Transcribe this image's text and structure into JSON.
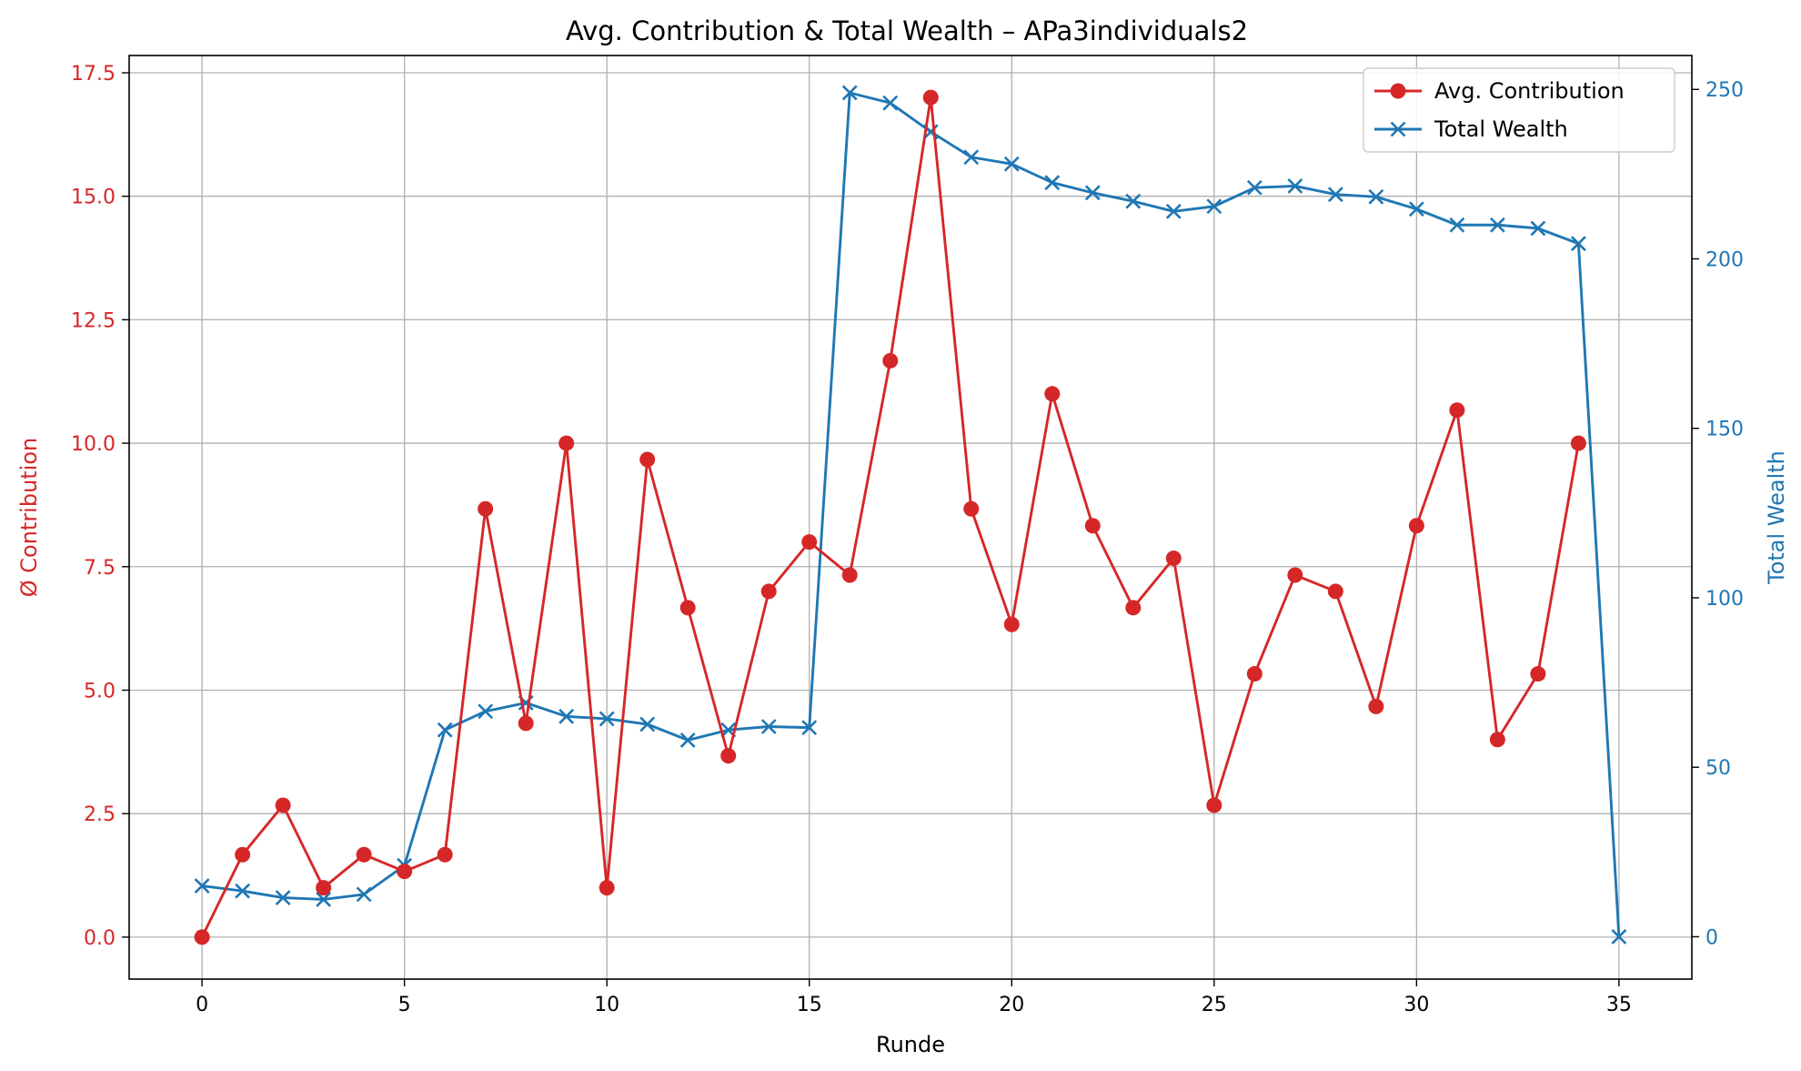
{
  "chart_data": {
    "type": "line",
    "title": "Avg. Contribution & Total Wealth – APa3individuals2",
    "xlabel": "Runde",
    "ylabel_left": "Ø Contribution",
    "ylabel_right": "Total Wealth",
    "xlim": [
      -1.8,
      36.8
    ],
    "ylim_left": [
      -0.85,
      17.85
    ],
    "ylim_right": [
      -12.5,
      260
    ],
    "xticks": [
      0,
      5,
      10,
      15,
      20,
      25,
      30,
      35
    ],
    "yticks_left": [
      0.0,
      2.5,
      5.0,
      7.5,
      10.0,
      12.5,
      15.0,
      17.5
    ],
    "yticks_left_labels": [
      "0.0",
      "2.5",
      "5.0",
      "7.5",
      "10.0",
      "12.5",
      "15.0",
      "17.5"
    ],
    "yticks_right": [
      0,
      50,
      100,
      150,
      200,
      250
    ],
    "grid": true,
    "legend_position": "top-right",
    "series": [
      {
        "name": "Avg. Contribution",
        "axis": "left",
        "color": "#d62728",
        "marker": "circle",
        "x": [
          0,
          1,
          2,
          3,
          4,
          5,
          6,
          7,
          8,
          9,
          10,
          11,
          12,
          13,
          14,
          15,
          16,
          17,
          18,
          19,
          20,
          21,
          22,
          23,
          24,
          25,
          26,
          27,
          28,
          29,
          30,
          31,
          32,
          33,
          34
        ],
        "values": [
          0.0,
          1.67,
          2.67,
          1.0,
          1.67,
          1.33,
          1.67,
          8.67,
          4.33,
          10.0,
          1.0,
          9.67,
          6.67,
          3.67,
          7.0,
          8.0,
          7.33,
          11.67,
          17.0,
          8.67,
          6.33,
          11.0,
          8.33,
          6.67,
          7.67,
          2.67,
          5.33,
          7.33,
          7.0,
          4.67,
          8.33,
          10.67,
          4.0,
          5.33,
          10.0
        ]
      },
      {
        "name": "Total Wealth",
        "axis": "right",
        "color": "#1f77b4",
        "marker": "x",
        "x": [
          0,
          1,
          2,
          3,
          4,
          5,
          6,
          7,
          8,
          9,
          10,
          11,
          12,
          13,
          14,
          15,
          16,
          17,
          18,
          19,
          20,
          21,
          22,
          23,
          24,
          25,
          26,
          27,
          28,
          29,
          30,
          31,
          32,
          33,
          34,
          35
        ],
        "values": [
          15,
          13.5,
          11.5,
          11,
          12.5,
          21,
          61,
          66.5,
          69,
          65,
          64.3,
          62.7,
          58,
          61,
          62,
          61.7,
          249,
          246,
          237.5,
          230,
          228,
          222.5,
          219.5,
          217,
          214,
          215.5,
          221,
          221.5,
          219,
          218.3,
          214.7,
          210,
          210,
          209,
          204.5,
          0
        ]
      }
    ]
  }
}
